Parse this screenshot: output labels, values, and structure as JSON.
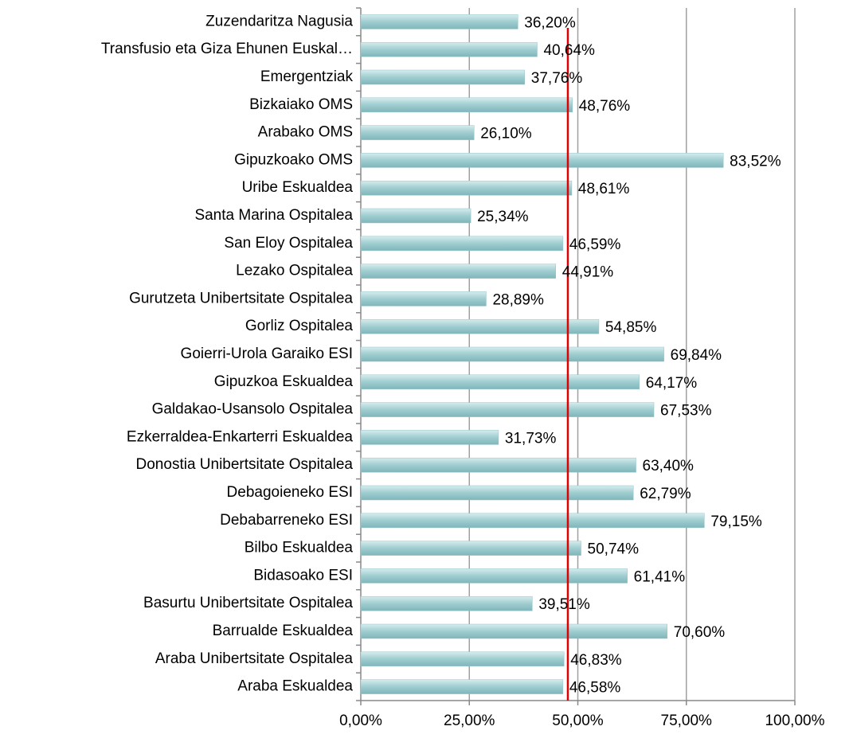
{
  "chart_data": {
    "type": "hbar",
    "categories": [
      "Zuzendaritza Nagusia",
      "Transfusio eta Giza Ehunen Euskal…",
      "Emergentziak",
      "Bizkaiako OMS",
      "Arabako OMS",
      "Gipuzkoako OMS",
      "Uribe Eskualdea",
      "Santa Marina Ospitalea",
      "San Eloy Ospitalea",
      "Lezako Ospitalea",
      "Gurutzeta Unibertsitate Ospitalea",
      "Gorliz Ospitalea",
      "Goierri-Urola Garaiko ESI",
      "Gipuzkoa Eskualdea",
      "Galdakao-Usansolo Ospitalea",
      "Ezkerraldea-Enkarterri Eskualdea",
      "Donostia Unibertsitate Ospitalea",
      "Debagoieneko ESI",
      "Debabarreneko ESI",
      "Bilbo Eskualdea",
      "Bidasoako ESI",
      "Basurtu Unibertsitate Ospitalea",
      "Barrualde Eskualdea",
      "Araba Unibertsitate Ospitalea",
      "Araba Eskualdea"
    ],
    "values": [
      36.2,
      40.64,
      37.76,
      48.76,
      26.1,
      83.52,
      48.61,
      25.34,
      46.59,
      44.91,
      28.89,
      54.85,
      69.84,
      64.17,
      67.53,
      31.73,
      63.4,
      62.79,
      79.15,
      50.74,
      61.41,
      39.51,
      70.6,
      46.83,
      46.58
    ],
    "value_labels": [
      "36,20%",
      "40,64%",
      "37,76%",
      "48,76%",
      "26,10%",
      "83,52%",
      "48,61%",
      "25,34%",
      "46,59%",
      "44,91%",
      "28,89%",
      "54,85%",
      "69,84%",
      "64,17%",
      "67,53%",
      "31,73%",
      "63,40%",
      "62,79%",
      "79,15%",
      "50,74%",
      "61,41%",
      "39,51%",
      "70,60%",
      "46,83%",
      "46,58%"
    ],
    "color": "#93c5c9",
    "xlim": [
      0,
      100
    ],
    "xticks": [
      {
        "value": 0,
        "label": "0,00%"
      },
      {
        "value": 25,
        "label": "25,00%"
      },
      {
        "value": 50,
        "label": "50,00%"
      },
      {
        "value": 75,
        "label": "75,00%"
      },
      {
        "value": 100,
        "label": "100,00%"
      }
    ],
    "grid": true,
    "reference_line": {
      "value": 47.7,
      "color": "#e00000"
    }
  }
}
